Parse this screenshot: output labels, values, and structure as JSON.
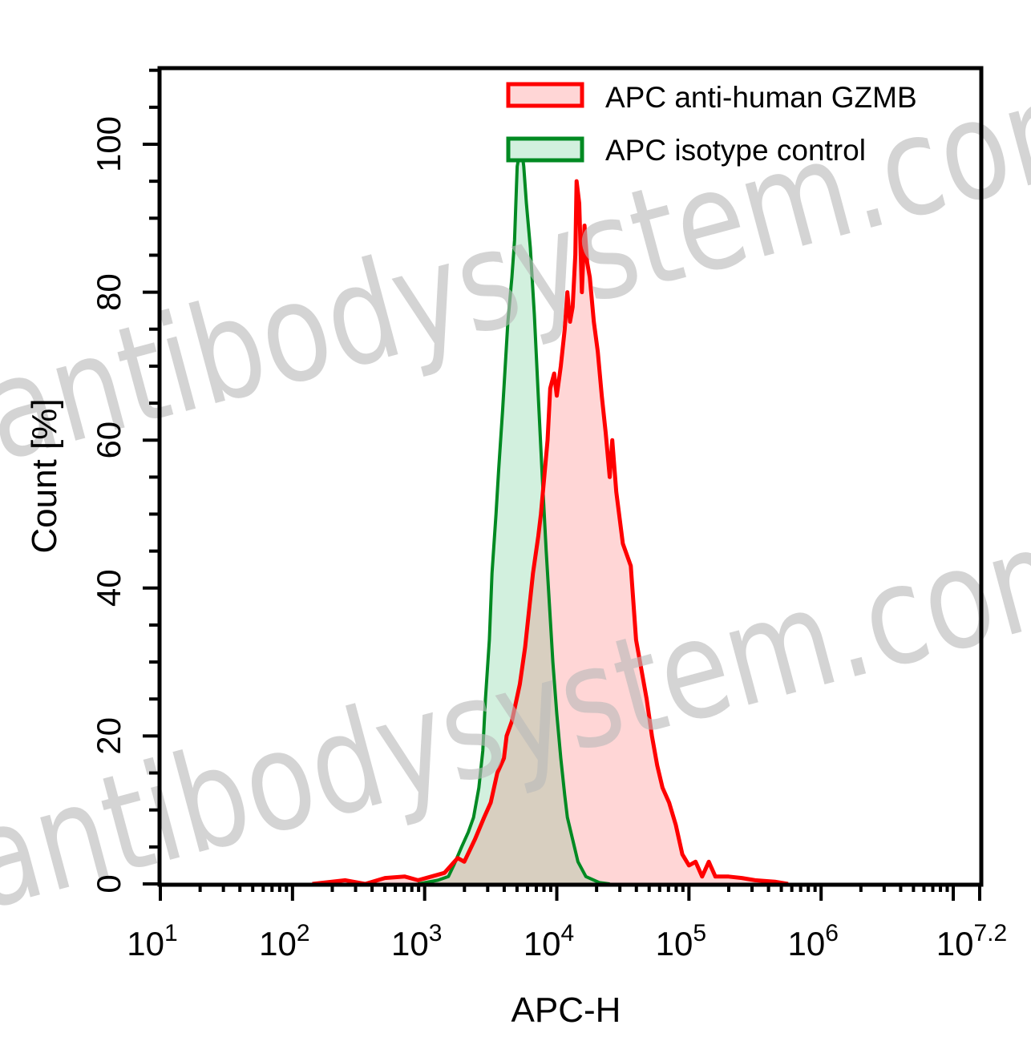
{
  "chart_data": {
    "type": "area",
    "subtype": "flow-cytometry-histogram-overlay",
    "title": "",
    "xlabel": "APC-H",
    "ylabel": "Count [%]",
    "xscale": "log10",
    "xlim_log10": [
      1,
      7.2
    ],
    "ylim": [
      0,
      110
    ],
    "x_ticks": [
      {
        "base": "10",
        "exp": "1",
        "value_log10": 1
      },
      {
        "base": "10",
        "exp": "2",
        "value_log10": 2
      },
      {
        "base": "10",
        "exp": "3",
        "value_log10": 3
      },
      {
        "base": "10",
        "exp": "4",
        "value_log10": 4
      },
      {
        "base": "10",
        "exp": "5",
        "value_log10": 5
      },
      {
        "base": "10",
        "exp": "6",
        "value_log10": 6
      },
      {
        "base": "10",
        "exp": "7.2",
        "value_log10": 7.2
      }
    ],
    "y_ticks": [
      "0",
      "20",
      "40",
      "60",
      "80",
      "100"
    ],
    "y_tick_values": [
      0,
      20,
      40,
      60,
      80,
      100
    ],
    "y_minor_step": 5,
    "grid": false,
    "legend_position": "top-right inside",
    "series": [
      {
        "name": "APC anti-human GZMB",
        "line_color": "#ff0000",
        "fill_color": "#ffd6d6",
        "peak_log10": 4.15,
        "peak_percent": 95,
        "points_log10_percent": [
          [
            2.15,
            0
          ],
          [
            2.4,
            0.5
          ],
          [
            2.55,
            0
          ],
          [
            2.7,
            0.8
          ],
          [
            2.85,
            1
          ],
          [
            2.95,
            0.5
          ],
          [
            3.05,
            1
          ],
          [
            3.15,
            1.5
          ],
          [
            3.25,
            3.5
          ],
          [
            3.3,
            3
          ],
          [
            3.38,
            6
          ],
          [
            3.45,
            9
          ],
          [
            3.5,
            11
          ],
          [
            3.55,
            15
          ],
          [
            3.6,
            17
          ],
          [
            3.62,
            20
          ],
          [
            3.66,
            22
          ],
          [
            3.72,
            27
          ],
          [
            3.76,
            32
          ],
          [
            3.79,
            37
          ],
          [
            3.82,
            42
          ],
          [
            3.86,
            47
          ],
          [
            3.88,
            50
          ],
          [
            3.91,
            56
          ],
          [
            3.93,
            60
          ],
          [
            3.95,
            67
          ],
          [
            3.98,
            69
          ],
          [
            4.0,
            66
          ],
          [
            4.03,
            70
          ],
          [
            4.06,
            75
          ],
          [
            4.08,
            80
          ],
          [
            4.1,
            76
          ],
          [
            4.12,
            78
          ],
          [
            4.14,
            85
          ],
          [
            4.15,
            95
          ],
          [
            4.17,
            92
          ],
          [
            4.19,
            80
          ],
          [
            4.21,
            89
          ],
          [
            4.23,
            84
          ],
          [
            4.25,
            82
          ],
          [
            4.28,
            76
          ],
          [
            4.31,
            72
          ],
          [
            4.34,
            66
          ],
          [
            4.37,
            61
          ],
          [
            4.4,
            55
          ],
          [
            4.42,
            60
          ],
          [
            4.45,
            53
          ],
          [
            4.5,
            46
          ],
          [
            4.56,
            43
          ],
          [
            4.6,
            33
          ],
          [
            4.64,
            29
          ],
          [
            4.68,
            25
          ],
          [
            4.72,
            20
          ],
          [
            4.76,
            16
          ],
          [
            4.8,
            13
          ],
          [
            4.85,
            11
          ],
          [
            4.9,
            8
          ],
          [
            4.95,
            4
          ],
          [
            5.0,
            2.5
          ],
          [
            5.05,
            3
          ],
          [
            5.1,
            1
          ],
          [
            5.15,
            3
          ],
          [
            5.2,
            1
          ],
          [
            5.3,
            1
          ],
          [
            5.4,
            0.8
          ],
          [
            5.5,
            0.5
          ],
          [
            5.65,
            0.3
          ],
          [
            5.75,
            0
          ]
        ]
      },
      {
        "name": "APC isotype control",
        "line_color": "#008a22",
        "fill_color": "#d2f0de",
        "peak_log10": 3.72,
        "peak_percent": 100,
        "points_log10_percent": [
          [
            2.95,
            0
          ],
          [
            3.1,
            0.5
          ],
          [
            3.18,
            1
          ],
          [
            3.22,
            2.5
          ],
          [
            3.28,
            5
          ],
          [
            3.33,
            7
          ],
          [
            3.37,
            9
          ],
          [
            3.41,
            13
          ],
          [
            3.44,
            18
          ],
          [
            3.46,
            25
          ],
          [
            3.49,
            33
          ],
          [
            3.51,
            42
          ],
          [
            3.54,
            50
          ],
          [
            3.56,
            56
          ],
          [
            3.59,
            64
          ],
          [
            3.61,
            70
          ],
          [
            3.63,
            76
          ],
          [
            3.66,
            82
          ],
          [
            3.68,
            87
          ],
          [
            3.7,
            97
          ],
          [
            3.72,
            99
          ],
          [
            3.73,
            100
          ],
          [
            3.75,
            97
          ],
          [
            3.77,
            92
          ],
          [
            3.8,
            86
          ],
          [
            3.83,
            77
          ],
          [
            3.86,
            66
          ],
          [
            3.89,
            55
          ],
          [
            3.92,
            45
          ],
          [
            3.95,
            36
          ],
          [
            3.97,
            30
          ],
          [
            4.0,
            23
          ],
          [
            4.03,
            17
          ],
          [
            4.06,
            12
          ],
          [
            4.08,
            9
          ],
          [
            4.12,
            6
          ],
          [
            4.16,
            3
          ],
          [
            4.22,
            1
          ],
          [
            4.32,
            0.2
          ],
          [
            4.4,
            0
          ]
        ]
      }
    ]
  },
  "legend": {
    "items": [
      {
        "label": "APC anti-human GZMB",
        "line_color": "#ff0000",
        "fill_color": "#ffd6d6"
      },
      {
        "label": "APC isotype control",
        "line_color": "#008a22",
        "fill_color": "#d2f0de"
      }
    ]
  },
  "watermark": {
    "text": "antibodysystem.com"
  },
  "colors": {
    "axis": "#000000",
    "overlap_fill": "#d8cfc0",
    "watermark": "#b9b9b9"
  }
}
